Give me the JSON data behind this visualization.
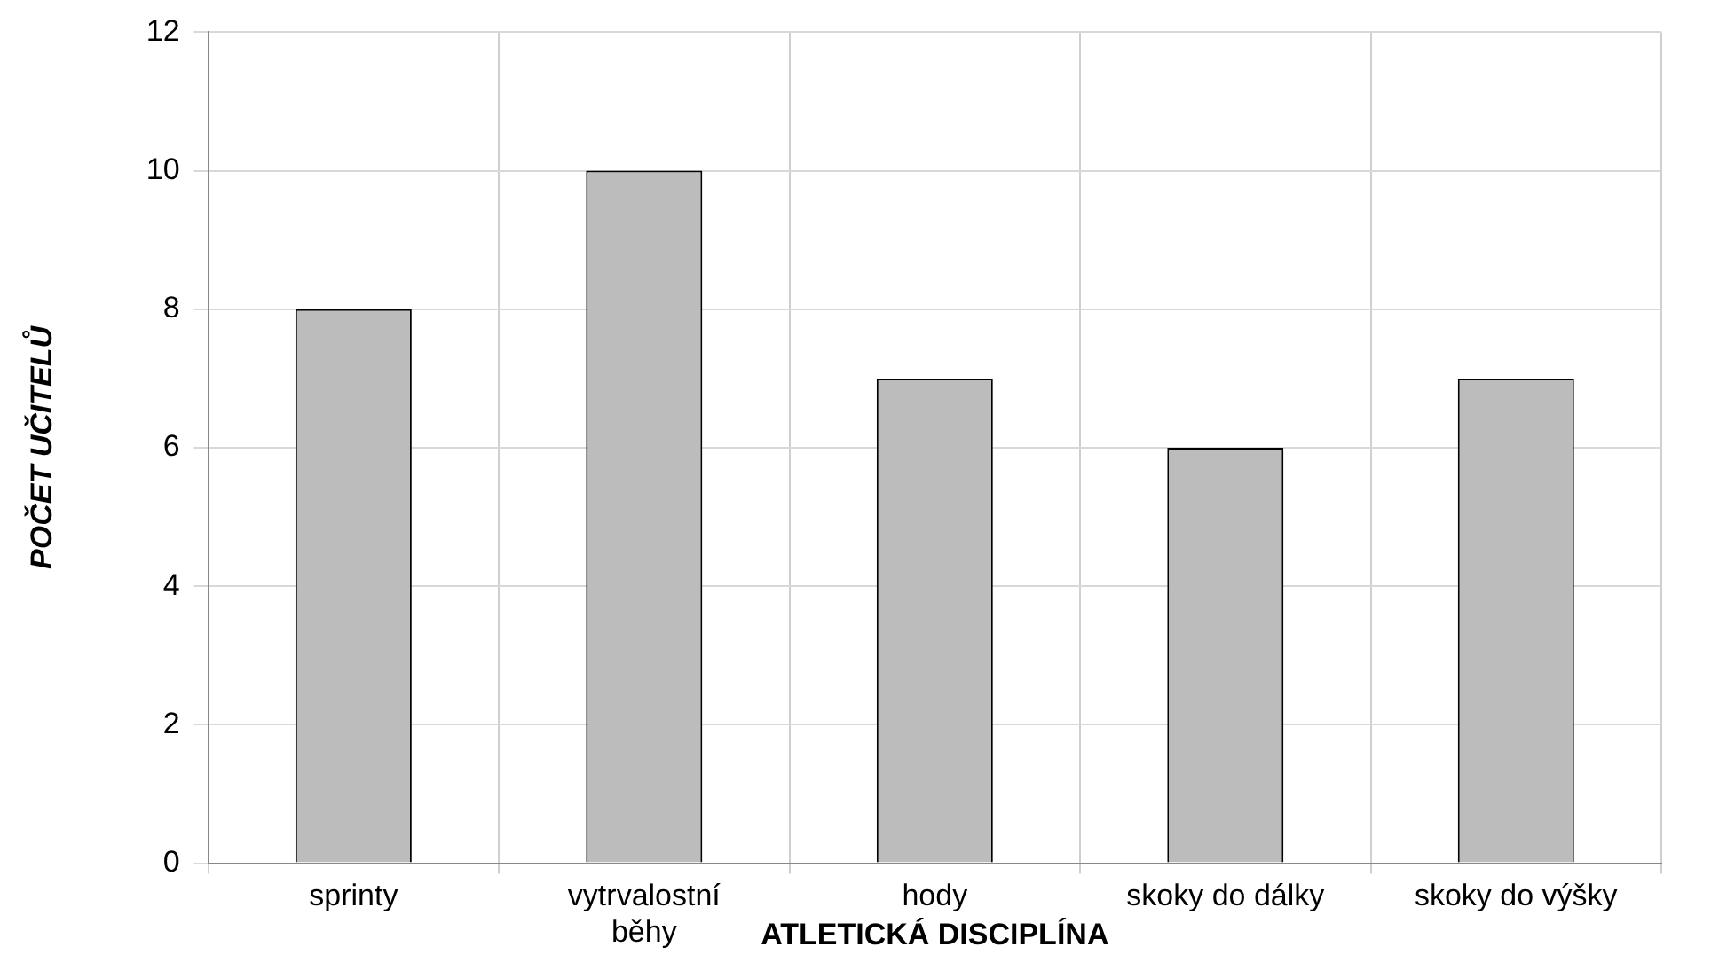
{
  "chart_data": {
    "type": "bar",
    "xlabel": "ATLETICKÁ DISCIPLÍNA",
    "ylabel": "POČET UČITELŮ",
    "categories": [
      "sprinty",
      "vytrvalostní běhy",
      "hody",
      "skoky do dálky",
      "skoky do výšky"
    ],
    "values": [
      8,
      10,
      7,
      6,
      7
    ],
    "color": "#bcbcbc",
    "ylim": [
      0,
      12
    ],
    "yticks": [
      0,
      2,
      4,
      6,
      8,
      10,
      12
    ],
    "grid": true,
    "legend": false
  }
}
